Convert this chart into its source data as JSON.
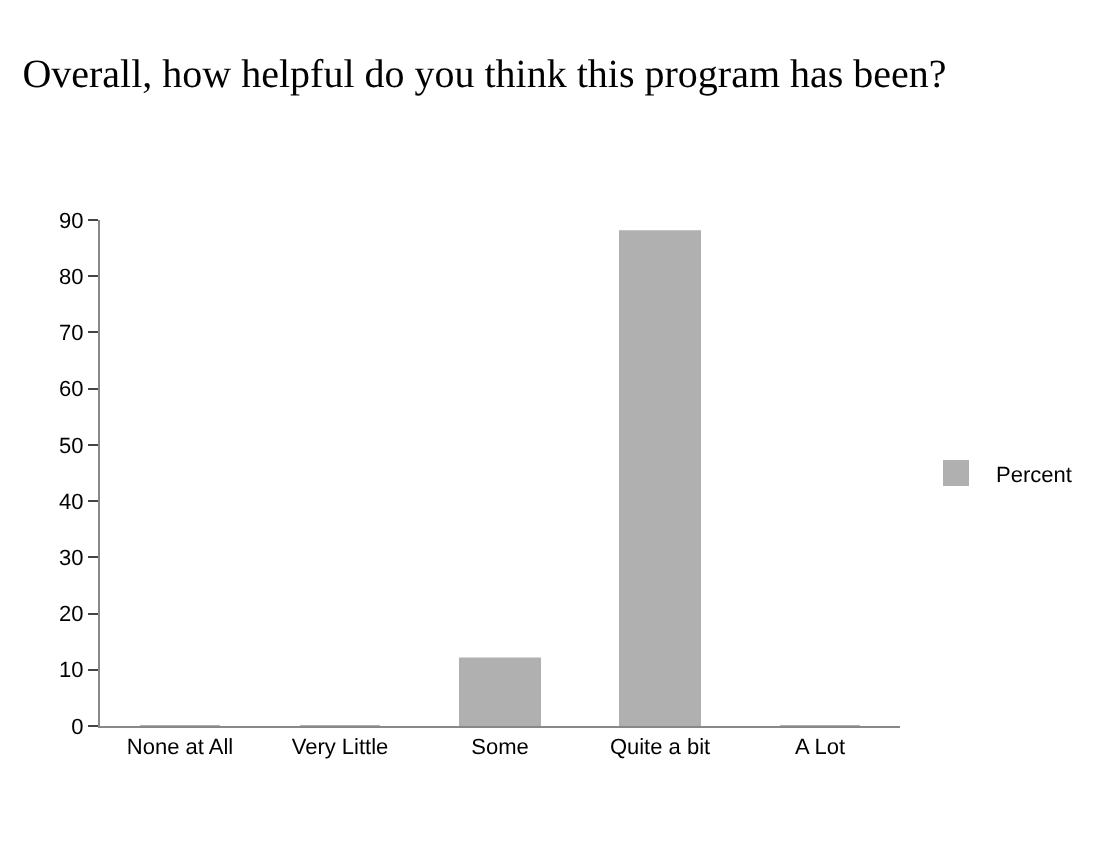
{
  "chart_data": {
    "type": "bar",
    "title": "Overall, how helpful do you think this program has been?",
    "categories": [
      "None at All",
      "Very Little",
      "Some",
      "Quite a bit",
      "A Lot"
    ],
    "series": [
      {
        "name": "Percent",
        "color": "#b0b0b0",
        "values": [
          0,
          0,
          12,
          88,
          0
        ]
      }
    ],
    "ylim": [
      0,
      90
    ],
    "yticks": [
      0,
      10,
      20,
      30,
      40,
      50,
      60,
      70,
      80,
      90
    ],
    "legend": "right"
  }
}
